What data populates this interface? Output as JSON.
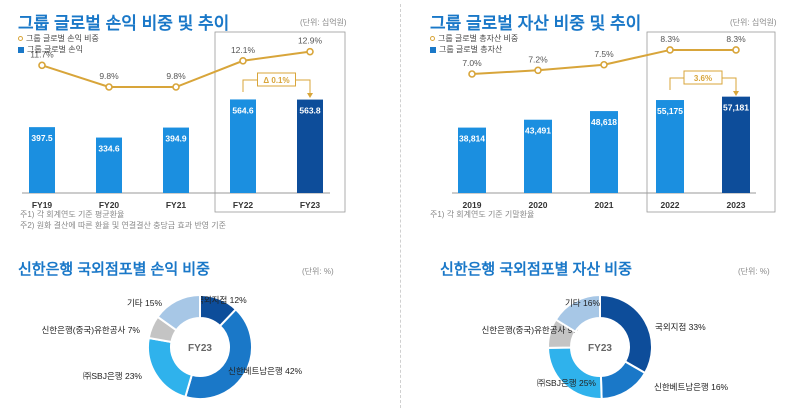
{
  "divider": "",
  "panels": {
    "profit_trend": {
      "title": "그룹 글로벌 손익 비중 및 추이",
      "unit": "(단위: 십억원)",
      "legend_ratio": "그룹 글로벌 손익 비중",
      "legend_bar": "그룹 글로벌 손익",
      "notes": [
        "주1) 각 회계연도 기준 평균환율",
        "주2) 원화 결산에 따른 환율 및 연결결산 충당금 효과 반영 기준"
      ],
      "callout": "Δ 0.1%"
    },
    "asset_trend": {
      "title": "그룹 글로벌 자산 비중 및 추이",
      "unit": "(단위: 십억원)",
      "legend_ratio": "그룹 글로벌 총자산 비중",
      "legend_bar": "그룹 글로벌 총자산",
      "notes": [
        "주1) 각 회계연도 기준 기말환율"
      ],
      "callout": "3.6%"
    },
    "profit_mix": {
      "title": "신한은행 국외점포별 손익 비중",
      "unit": "(단위: %)",
      "center": "FY23"
    },
    "asset_mix": {
      "title": "신한은행 국외점포별 자산 비중",
      "unit": "(단위: %)",
      "center": "FY23"
    }
  },
  "colors": {
    "bar": "#1b8fe0",
    "bar_last": "#0d4d9a",
    "line": "#d8a53a",
    "title": "#1a78c8"
  },
  "chart_data": [
    {
      "type": "bar",
      "categories": [
        "FY19",
        "FY20",
        "FY21",
        "FY22",
        "FY23"
      ],
      "series": [
        {
          "name": "그룹 글로벌 손익",
          "values": [
            397.5,
            334.6,
            394.9,
            564.6,
            563.8
          ],
          "labels": [
            "397.5",
            "334.6",
            "394.9",
            "564.6",
            "563.8"
          ]
        },
        {
          "name": "그룹 글로벌 손익 비중",
          "values": [
            11.7,
            9.8,
            9.8,
            12.1,
            12.9
          ],
          "labels": [
            "11.7%",
            "9.8%",
            "9.8%",
            "12.1%",
            "12.9%"
          ]
        }
      ],
      "title": "그룹 글로벌 손익 비중 및 추이"
    },
    {
      "type": "bar",
      "categories": [
        "2019",
        "2020",
        "2021",
        "2022",
        "2023"
      ],
      "series": [
        {
          "name": "그룹 글로벌 총자산",
          "values": [
            38814,
            43491,
            48618,
            55175,
            57181
          ],
          "labels": [
            "38,814",
            "43,491",
            "48,618",
            "55,175",
            "57,181"
          ]
        },
        {
          "name": "그룹 글로벌 총자산 비중",
          "values": [
            7.0,
            7.2,
            7.5,
            8.3,
            8.3
          ],
          "labels": [
            "7.0%",
            "7.2%",
            "7.5%",
            "8.3%",
            "8.3%"
          ]
        }
      ],
      "title": "그룹 글로벌 자산 비중 및 추이"
    },
    {
      "type": "pie",
      "title": "신한은행 국외점포별 손익 비중",
      "slices": [
        {
          "label": "국외지점",
          "value": 12,
          "text": "12%",
          "color": "#0d4d9a"
        },
        {
          "label": "신한베트남은행",
          "value": 42,
          "text": "42%",
          "color": "#1a78c8"
        },
        {
          "label": "㈜SBJ은행",
          "value": 23,
          "text": "23%",
          "color": "#2fb2ec"
        },
        {
          "label": "신한은행(중국)유한공사",
          "value": 7,
          "text": "7%",
          "color": "#c4c4c4"
        },
        {
          "label": "기타",
          "value": 15,
          "text": "15%",
          "color": "#a7c7e6"
        }
      ]
    },
    {
      "type": "pie",
      "title": "신한은행 국외점포별 자산 비중",
      "slices": [
        {
          "label": "국외지점",
          "value": 33,
          "text": "33%",
          "color": "#0d4d9a"
        },
        {
          "label": "신한베트남은행",
          "value": 16,
          "text": "16%",
          "color": "#1a78c8"
        },
        {
          "label": "㈜SBJ은행",
          "value": 25,
          "text": "25%",
          "color": "#2fb2ec"
        },
        {
          "label": "신한은행(중국)유한공사",
          "value": 9,
          "text": "9%",
          "color": "#c4c4c4"
        },
        {
          "label": "기타",
          "value": 16,
          "text": "16%",
          "color": "#a7c7e6"
        }
      ]
    }
  ]
}
